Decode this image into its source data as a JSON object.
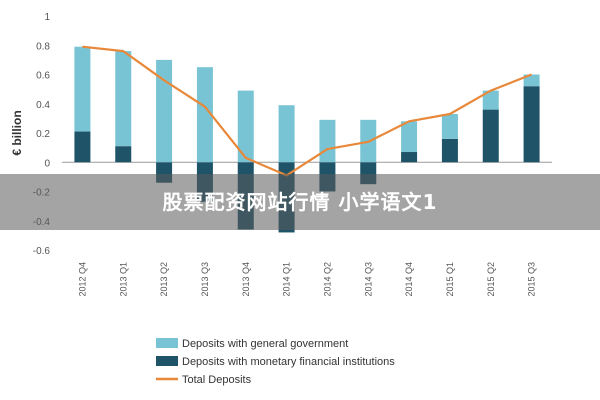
{
  "chart_data": {
    "type": "bar",
    "subtype": "stacked-bar-with-line",
    "categories": [
      "2012 Q4",
      "2013 Q1",
      "2013 Q2",
      "2013 Q3",
      "2013 Q4",
      "2014 Q1",
      "2014 Q2",
      "2014 Q3",
      "2014 Q4",
      "2015 Q1",
      "2015 Q2",
      "2015 Q3"
    ],
    "series": [
      {
        "name": "Deposits with general government",
        "kind": "bar",
        "values": [
          0.58,
          0.65,
          0.7,
          0.65,
          0.49,
          0.39,
          0.29,
          0.29,
          0.21,
          0.17,
          0.13,
          0.08
        ]
      },
      {
        "name": "Deposits with monetary financial institutions",
        "kind": "bar",
        "values": [
          0.21,
          0.11,
          -0.14,
          -0.27,
          -0.46,
          -0.48,
          -0.2,
          -0.15,
          0.07,
          0.16,
          0.36,
          0.52
        ]
      },
      {
        "name": "Total Deposits",
        "kind": "line",
        "values": [
          0.79,
          0.76,
          0.56,
          0.38,
          0.03,
          -0.09,
          0.09,
          0.14,
          0.28,
          0.33,
          0.49,
          0.6
        ]
      }
    ],
    "ylabel": "€ billion",
    "xlabel": "",
    "title": "",
    "ylim": [
      -0.6,
      1.0
    ],
    "yticks": [
      -0.6,
      -0.4,
      -0.2,
      0,
      0.2,
      0.4,
      0.6,
      0.8,
      1
    ],
    "grid": false,
    "legend_position": "bottom-left",
    "colors": {
      "general_government": "#78c4d4",
      "monetary_financial": "#1f5468",
      "total_line": "#e8883a",
      "zero_line": "#9a9a9a"
    }
  },
  "watermark": {
    "text": "股票配资网站行情 小学语文1"
  }
}
